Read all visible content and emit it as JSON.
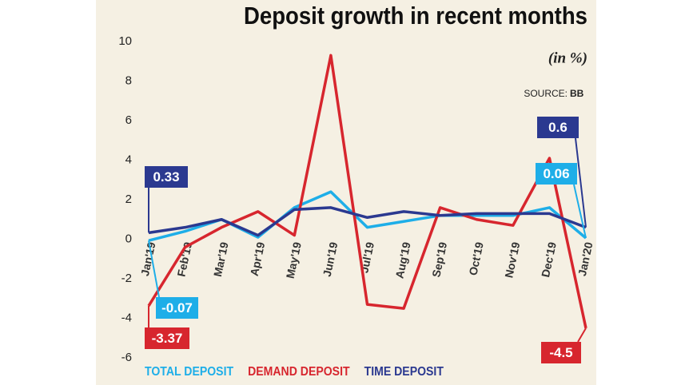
{
  "chart_data": {
    "type": "line",
    "title": "Deposit growth in recent months",
    "subtitle": "(in %)",
    "source_prefix": "SOURCE:",
    "source": "BB",
    "categories": [
      "Jan'19",
      "Feb'19",
      "Mar'19",
      "Apr'19",
      "May'19",
      "Jun'19",
      "Jul'19",
      "Aug'19",
      "Sep'19",
      "Oct'19",
      "Nov'19",
      "Dec'19",
      "Jan'20"
    ],
    "series": [
      {
        "name": "TOTAL DEPOSIT",
        "color": "#1eaee8",
        "values": [
          -0.07,
          0.4,
          1.0,
          0.1,
          1.6,
          2.4,
          0.6,
          0.9,
          1.2,
          1.2,
          1.2,
          1.6,
          0.06
        ],
        "value_labels": [
          "-0.07",
          null,
          null,
          null,
          null,
          null,
          null,
          null,
          null,
          null,
          null,
          null,
          "0.06"
        ]
      },
      {
        "name": "DEMAND DEPOSIT",
        "color": "#d7262e",
        "values": [
          -3.37,
          -0.4,
          0.6,
          1.4,
          0.2,
          9.3,
          -3.3,
          -3.5,
          1.6,
          1.0,
          0.7,
          4.1,
          -4.5
        ],
        "value_labels": [
          "-3.37",
          null,
          null,
          null,
          null,
          null,
          null,
          null,
          null,
          null,
          null,
          null,
          "-4.5"
        ]
      },
      {
        "name": "TIME DEPOSIT",
        "color": "#2b3990",
        "values": [
          0.33,
          0.6,
          1.0,
          0.2,
          1.5,
          1.6,
          1.1,
          1.4,
          1.2,
          1.3,
          1.3,
          1.3,
          0.6
        ],
        "value_labels": [
          "0.33",
          null,
          null,
          null,
          null,
          null,
          null,
          null,
          null,
          null,
          null,
          null,
          "0.6"
        ]
      }
    ],
    "ylim": [
      -6,
      10
    ],
    "yticks": [
      -6,
      -4,
      -2,
      0,
      2,
      4,
      6,
      8,
      10
    ],
    "grid": false
  }
}
